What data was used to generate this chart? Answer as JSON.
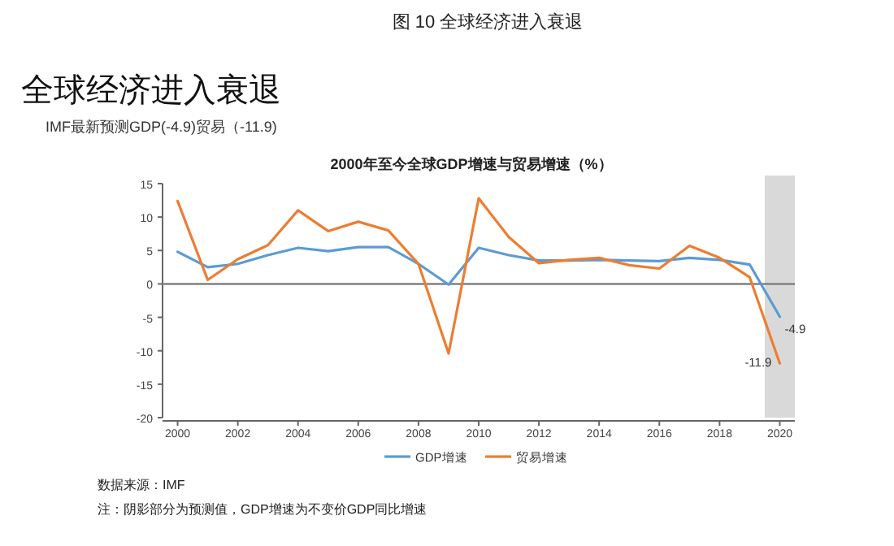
{
  "chart_data": {
    "type": "line",
    "title": "全球经济进入衰退",
    "subtitle": "IMF最新预测GDP(-4.9)贸易（-11.9)",
    "annotations": [
      "图 10 全球经济进入衰退",
      "2000年至今全球GDP增速与贸易增速（%）",
      "数据来源：IMF",
      "注：阴影部分为预测值，GDP增速为不变价GDP同比增速",
      {
        "text": "-4.9",
        "x": 2020,
        "y": -4.9
      },
      {
        "text": "-11.9",
        "x": 2020,
        "y": -11.9
      }
    ],
    "x": [
      2000,
      2001,
      2002,
      2003,
      2004,
      2005,
      2006,
      2007,
      2008,
      2009,
      2010,
      2011,
      2012,
      2013,
      2014,
      2015,
      2016,
      2017,
      2018,
      2019,
      2020
    ],
    "series": [
      {
        "name": "GDP增速",
        "color": "#5b9bd5",
        "values": [
          4.8,
          2.5,
          3.0,
          4.3,
          5.4,
          4.9,
          5.5,
          5.5,
          3.0,
          -0.1,
          5.4,
          4.3,
          3.5,
          3.5,
          3.6,
          3.5,
          3.4,
          3.9,
          3.6,
          2.9,
          -4.9
        ]
      },
      {
        "name": "贸易增速",
        "color": "#ed7d31",
        "values": [
          12.4,
          0.6,
          3.7,
          5.8,
          11.0,
          7.9,
          9.3,
          8.0,
          3.0,
          -10.4,
          12.8,
          7.0,
          3.1,
          3.6,
          3.9,
          2.8,
          2.3,
          5.7,
          3.9,
          1.0,
          -11.9
        ]
      }
    ],
    "xlim": [
      1999.5,
      2020.5
    ],
    "ylim": [
      -20,
      15
    ],
    "xticks": [
      2000,
      2002,
      2004,
      2006,
      2008,
      2010,
      2012,
      2014,
      2016,
      2018,
      2020
    ],
    "yticks": [
      -20,
      -15,
      -10,
      -5,
      0,
      5,
      10,
      15
    ],
    "bands": [
      {
        "axis": "x",
        "from": 2019.5,
        "to": 2020.5,
        "color": "#d9d9d9"
      }
    ],
    "ref_lines": [
      {
        "axis": "y",
        "value": 0,
        "color": "#808080"
      }
    ],
    "legend": "bottom"
  }
}
